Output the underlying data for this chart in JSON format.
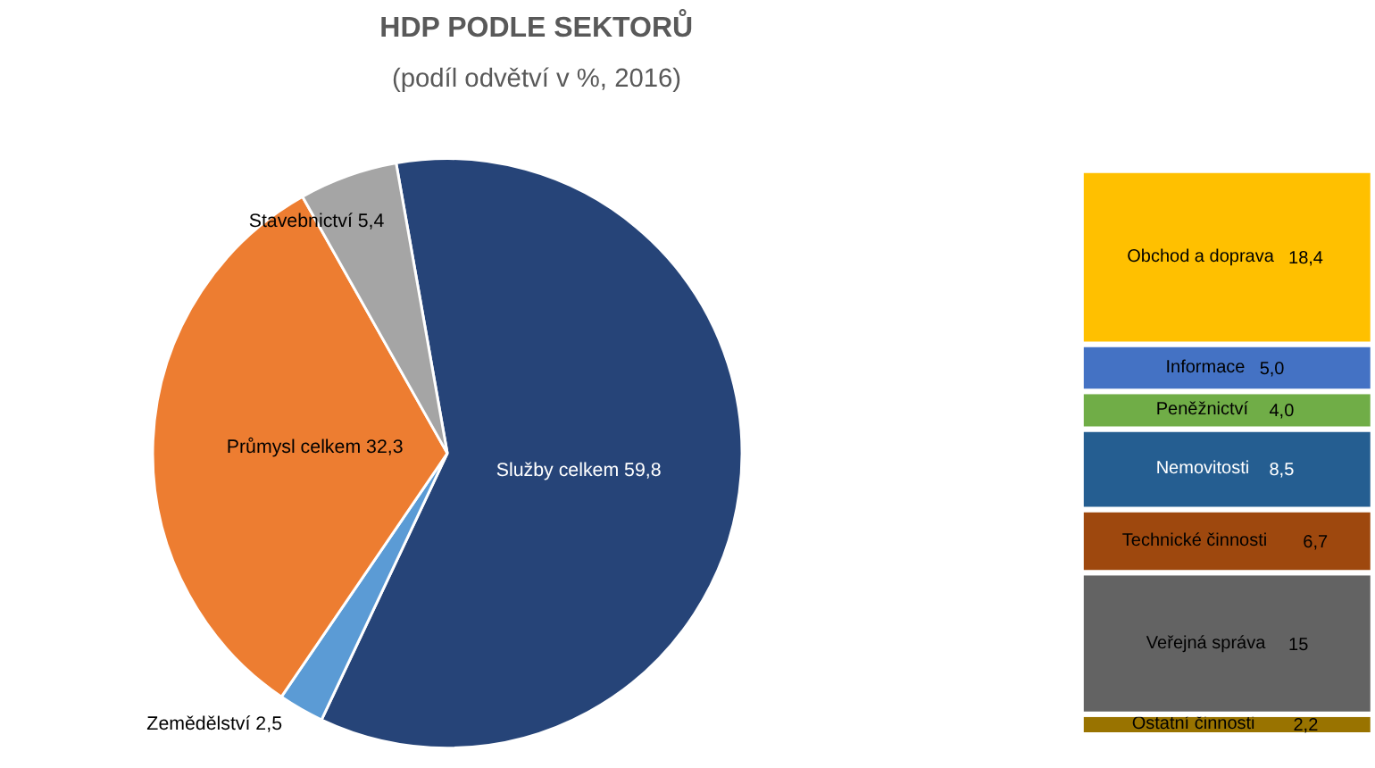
{
  "chart_data": [
    {
      "type": "pie",
      "title": "HDP PODLE SEKTORŮ",
      "subtitle": "(podíl odvětví v %, 2016)",
      "categories": [
        "Služby celkem",
        "Zemědělství",
        "Průmysl celkem",
        "Stavebnictví"
      ],
      "values": [
        59.8,
        2.5,
        32.3,
        5.4
      ],
      "colors": [
        "#264478",
        "#5b9bd5",
        "#ed7d31",
        "#a5a5a5"
      ],
      "value_labels": [
        "59,8",
        "2,5",
        "32,3",
        "5,4"
      ]
    },
    {
      "type": "bar",
      "stacked": true,
      "categories": [
        null
      ],
      "series": [
        {
          "name": "Ostatní činnosti",
          "color": "#997300",
          "values": [
            2.2
          ],
          "value_labels": [
            "2,2"
          ]
        },
        {
          "name": "Veřejná správa",
          "color": "#636363",
          "values": [
            15
          ],
          "value_labels": [
            "15"
          ]
        },
        {
          "name": "Technické činnosti",
          "color": "#9e480e",
          "values": [
            6.7
          ],
          "value_labels": [
            "6,7"
          ]
        },
        {
          "name": "Nemovitosti",
          "color": "#255e91",
          "values": [
            8.5
          ],
          "value_labels": [
            "8,5"
          ]
        },
        {
          "name": "Peněžnictví",
          "color": "#70ad47",
          "values": [
            4.0
          ],
          "value_labels": [
            "4,0"
          ]
        },
        {
          "name": "Informace",
          "color": "#4472c4",
          "values": [
            5.0
          ],
          "value_labels": [
            "5,0"
          ]
        },
        {
          "name": "Obchod a doprava",
          "color": "#ffc000",
          "values": [
            18.4
          ],
          "value_labels": [
            "18,4"
          ]
        }
      ]
    }
  ]
}
